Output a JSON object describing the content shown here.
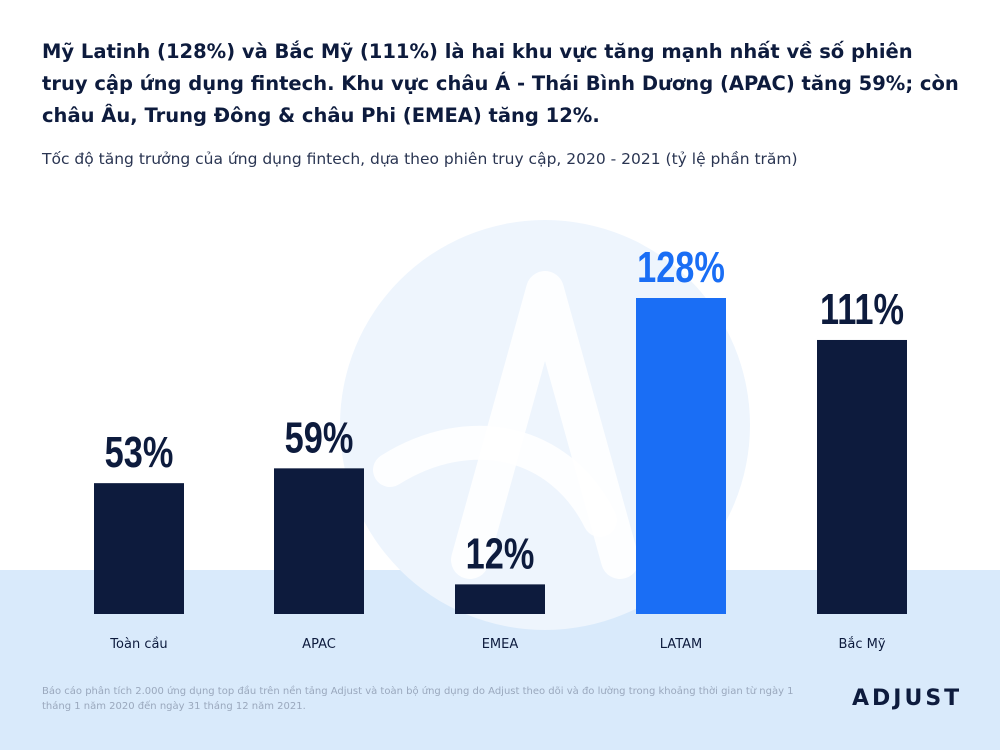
{
  "headline": "Mỹ Latinh (128%) và Bắc Mỹ (111%) là hai khu vực tăng mạnh nhất về số phiên truy cập ứng dụng fintech. Khu vực châu Á - Thái Bình Dương (APAC) tăng 59%; còn châu Âu, Trung Đông & châu Phi (EMEA) tăng 12%.",
  "footnote": "Báo cáo phân tích 2.000 ứng dụng top đầu trên nền tảng Adjust và toàn bộ ứng dụng do Adjust theo dõi và đo lường trong khoảng thời gian từ ngày 1 tháng 1 năm 2020 đến ngày 31 tháng 12 năm 2021.",
  "logo": "ADJUST",
  "colors": {
    "bar_default": "#0d1b3d",
    "bar_highlight": "#1a6ef5",
    "background_band": "#d9eafb"
  },
  "chart_data": {
    "type": "bar",
    "title": "Tốc độ tăng trưởng của ứng dụng fintech, dựa theo phiên truy cập, 2020 - 2021 (tỷ lệ phần trăm)",
    "categories": [
      "Toàn cầu",
      "APAC",
      "EMEA",
      "LATAM",
      "Bắc Mỹ"
    ],
    "values": [
      53,
      59,
      12,
      128,
      111
    ],
    "value_labels": [
      "53%",
      "59%",
      "12%",
      "128%",
      "111%"
    ],
    "highlight_index": 3,
    "unit": "%",
    "xlabel": "",
    "ylabel": "",
    "ylim": [
      0,
      128
    ],
    "grid": false
  }
}
